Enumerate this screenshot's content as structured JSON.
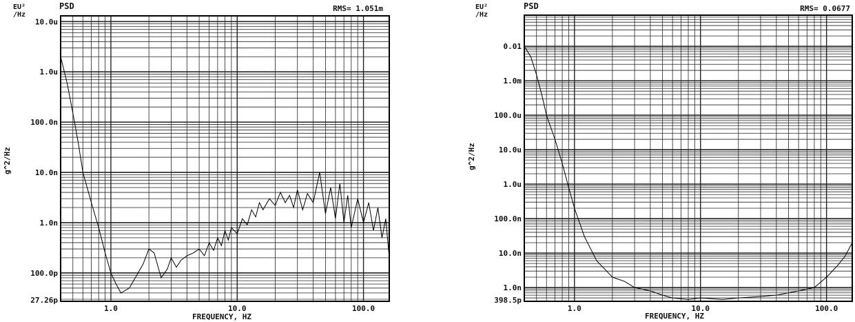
{
  "charts": [
    {
      "unit_label": [
        "EU²",
        "/Hz"
      ],
      "psd_label": "PSD",
      "rms_text": "RMS= 1.051m",
      "ylabel": "g^2/Hz",
      "xlabel": "FREQUENCY, HZ",
      "x_ticks": [
        {
          "value": 1,
          "label": "1.0"
        },
        {
          "value": 10,
          "label": "10.0"
        },
        {
          "value": 100,
          "label": "100.0"
        }
      ],
      "y_ticks": [
        {
          "value": 1e-05,
          "label": "10.0u"
        },
        {
          "value": 1e-06,
          "label": "1.0u"
        },
        {
          "value": 1e-07,
          "label": "100.0n"
        },
        {
          "value": 1e-08,
          "label": "10.0n"
        },
        {
          "value": 1e-09,
          "label": "1.0n"
        },
        {
          "value": 1e-10,
          "label": "100.0p"
        },
        {
          "value": 2.726e-11,
          "label": "27.26p"
        }
      ]
    },
    {
      "unit_label": [
        "EU²",
        "/Hz"
      ],
      "psd_label": "PSD",
      "rms_text": "RMS= 0.0677",
      "ylabel": "g^2/Hz",
      "xlabel": "FREQUENCY, HZ",
      "x_ticks": [
        {
          "value": 1,
          "label": "1.0"
        },
        {
          "value": 10,
          "label": "10.0"
        },
        {
          "value": 100,
          "label": "100.0"
        }
      ],
      "y_ticks": [
        {
          "value": 0.01,
          "label": "0.01"
        },
        {
          "value": 0.001,
          "label": "1.0m"
        },
        {
          "value": 0.0001,
          "label": "100.0u"
        },
        {
          "value": 1e-05,
          "label": "10.0u"
        },
        {
          "value": 1e-06,
          "label": "1.0u"
        },
        {
          "value": 1e-07,
          "label": "100.0n"
        },
        {
          "value": 1e-08,
          "label": "10.0n"
        },
        {
          "value": 1e-09,
          "label": "1.0n"
        },
        {
          "value": 3.985e-10,
          "label": "398.5p"
        }
      ]
    }
  ],
  "chart_data": [
    {
      "type": "line",
      "xscale": "log",
      "yscale": "log",
      "xlim": [
        0.4,
        160
      ],
      "ylim": [
        2.726e-11,
        1.3e-05
      ],
      "grid": true,
      "series": [
        {
          "x": [
            0.4,
            0.45,
            0.5,
            0.55,
            0.6,
            0.7,
            0.8,
            0.9,
            1.0,
            1.1,
            1.2,
            1.4,
            1.6,
            1.8,
            2.0,
            2.2,
            2.5,
            2.8,
            3.0,
            3.3,
            3.6,
            4.0,
            4.5,
            5.0,
            5.5,
            6.0,
            6.5,
            7.0,
            7.5,
            8.0,
            8.5,
            9.0,
            10,
            11,
            12,
            13,
            14,
            15,
            16,
            18,
            20,
            22,
            24,
            26,
            28,
            30,
            33,
            36,
            40,
            45,
            50,
            55,
            60,
            65,
            70,
            75,
            80,
            90,
            100,
            110,
            120,
            130,
            140,
            150,
            160
          ],
          "y": [
            2e-06,
            6e-07,
            1.5e-07,
            4e-08,
            1e-08,
            2.5e-09,
            8e-10,
            2.5e-10,
            1e-10,
            6e-11,
            4e-11,
            5e-11,
            9e-11,
            1.5e-10,
            3e-10,
            2.5e-10,
            8e-11,
            1.2e-10,
            2e-10,
            1.3e-10,
            1.8e-10,
            2.2e-10,
            2.5e-10,
            3e-10,
            2.2e-10,
            4e-10,
            2.8e-10,
            5e-10,
            3.5e-10,
            7e-10,
            4.5e-10,
            8e-10,
            6e-10,
            1.2e-09,
            9e-10,
            1.8e-09,
            1.3e-09,
            2.5e-09,
            1.8e-09,
            3e-09,
            2.2e-09,
            4e-09,
            2.5e-09,
            3.5e-09,
            2e-09,
            4.5e-09,
            1.8e-09,
            3.8e-09,
            2.5e-09,
            1e-08,
            1.5e-09,
            5e-09,
            1.2e-09,
            6e-09,
            1e-09,
            3.5e-09,
            8e-10,
            3e-09,
            1e-09,
            2.5e-09,
            7e-10,
            2e-09,
            5e-10,
            1.2e-09,
            2e-10
          ]
        }
      ]
    },
    {
      "type": "line",
      "xscale": "log",
      "yscale": "log",
      "xlim": [
        0.4,
        160
      ],
      "ylim": [
        3.985e-10,
        0.08
      ],
      "grid": true,
      "series": [
        {
          "x": [
            0.4,
            0.45,
            0.5,
            0.55,
            0.6,
            0.7,
            0.8,
            0.9,
            1.0,
            1.2,
            1.5,
            2.0,
            2.5,
            3.0,
            4.0,
            5.0,
            6.0,
            8.0,
            10,
            15,
            20,
            30,
            40,
            60,
            80,
            100,
            120,
            140,
            160
          ],
          "y": [
            0.01,
            0.005,
            0.0015,
            0.0004,
            0.0001,
            2e-05,
            4e-06,
            8e-07,
            2e-07,
            3e-08,
            6e-09,
            2e-09,
            1.5e-09,
            1e-09,
            8e-10,
            6e-10,
            5e-10,
            4.5e-10,
            5e-10,
            4.5e-10,
            5e-10,
            5.5e-10,
            6e-10,
            8e-10,
            1e-09,
            2e-09,
            4e-09,
            8e-09,
            2e-08
          ]
        }
      ]
    }
  ]
}
